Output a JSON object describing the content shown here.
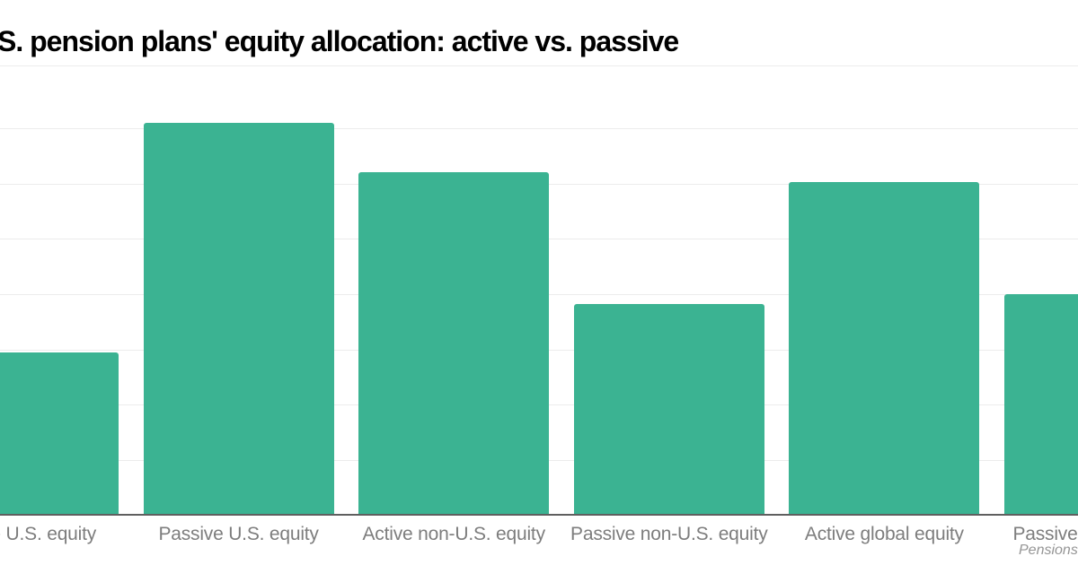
{
  "page": {
    "background": "#ffffff"
  },
  "chart_data": {
    "type": "bar",
    "title": "U.S. pension plans' equity allocation: active vs. passive",
    "categories": [
      "Active U.S. equity",
      "Passive U.S. equity",
      "Active non-U.S. equity",
      "Passive non-U.S. equity",
      "Active global equity",
      "Passive global equity"
    ],
    "values": [
      14.7,
      35.5,
      31.0,
      19.1,
      30.1,
      20.0
    ],
    "unit": "%",
    "xlabel": "",
    "ylabel": "",
    "ylim": [
      0,
      40.7
    ],
    "grid": true,
    "gridline_step": 5,
    "y_tick_labels_visible": false,
    "legend": "none",
    "bar_color": "#3bb392",
    "source": "Pensions & Investments",
    "layout_hints": {
      "view_cropped_left_and_right": true,
      "first_bar_cut_at_left_edge": true,
      "last_bar_cut_at_right_edge": true
    }
  },
  "colors": {
    "bar": "#3bb392",
    "gridline": "#ececec",
    "axis_line": "#5f5f5f",
    "title_text": "#000000",
    "label_text": "#7d7d7d",
    "source_text": "#959595"
  }
}
